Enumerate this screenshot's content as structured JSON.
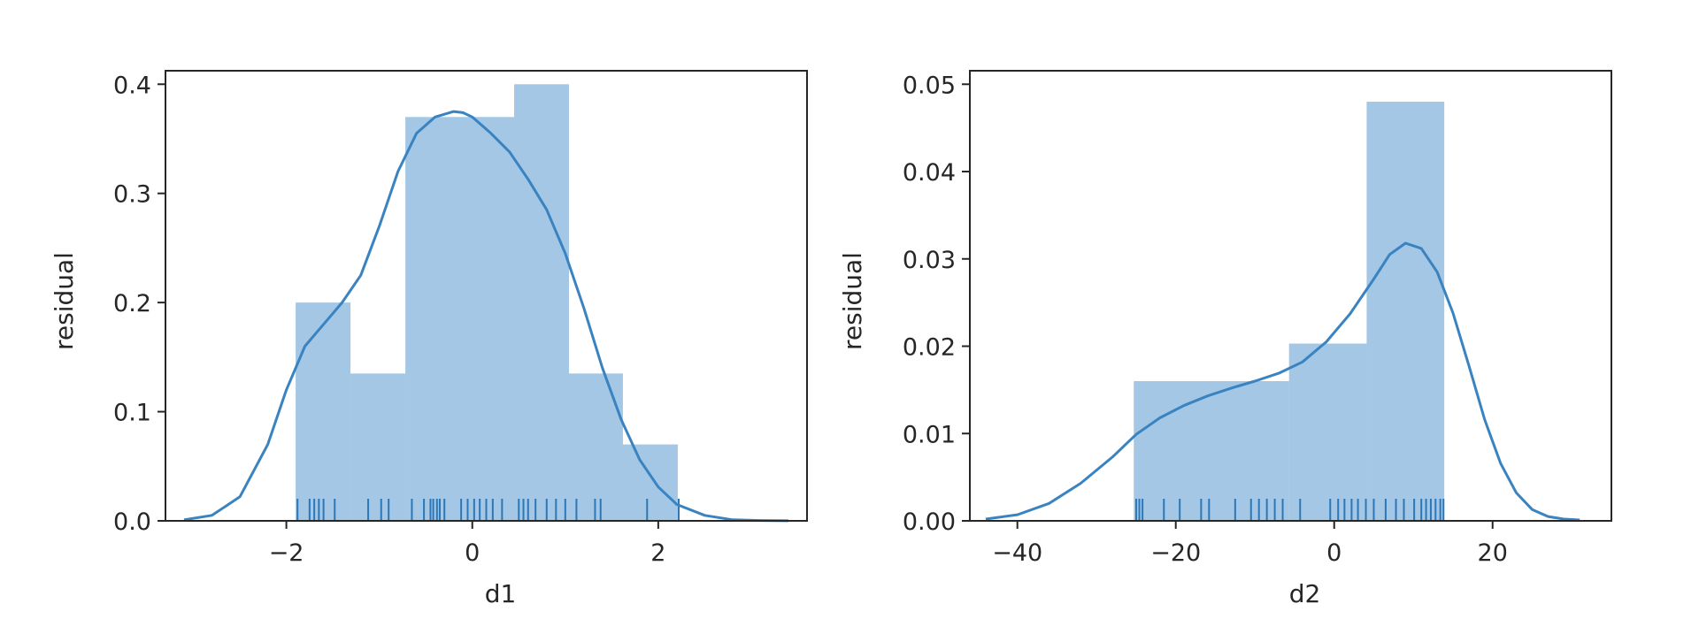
{
  "chart_data": [
    {
      "type": "histogram-kde-rug",
      "xlabel": "d1",
      "ylabel": "residual",
      "xlim": [
        -3.3,
        3.6
      ],
      "ylim": [
        0,
        0.4
      ],
      "xticks": [
        -2,
        0,
        2
      ],
      "yticks": [
        0.0,
        0.1,
        0.2,
        0.3,
        0.4
      ],
      "xtick_labels": [
        "−2",
        "0",
        "2"
      ],
      "ytick_labels": [
        "0.0",
        "0.1",
        "0.2",
        "0.3",
        "0.4"
      ],
      "grid": false,
      "bars": [
        {
          "x0": -1.9,
          "x1": -1.31,
          "density": 0.2
        },
        {
          "x0": -1.31,
          "x1": -0.72,
          "density": 0.135
        },
        {
          "x0": -0.72,
          "x1": 0.45,
          "density": 0.37
        },
        {
          "x0": 0.45,
          "x1": 1.04,
          "density": 0.4
        },
        {
          "x0": 1.04,
          "x1": 1.62,
          "density": 0.135
        },
        {
          "x0": 1.62,
          "x1": 2.21,
          "density": 0.07
        }
      ],
      "kde": {
        "x": [
          -3.1,
          -2.8,
          -2.5,
          -2.2,
          -2.0,
          -1.8,
          -1.6,
          -1.4,
          -1.2,
          -1.0,
          -0.8,
          -0.6,
          -0.4,
          -0.2,
          -0.1,
          0.0,
          0.2,
          0.4,
          0.6,
          0.8,
          1.0,
          1.2,
          1.4,
          1.6,
          1.8,
          2.0,
          2.2,
          2.5,
          2.8,
          3.1,
          3.4
        ],
        "y": [
          0.001,
          0.005,
          0.022,
          0.07,
          0.12,
          0.16,
          0.18,
          0.2,
          0.225,
          0.27,
          0.32,
          0.355,
          0.37,
          0.375,
          0.374,
          0.37,
          0.355,
          0.338,
          0.313,
          0.285,
          0.245,
          0.195,
          0.14,
          0.093,
          0.056,
          0.031,
          0.015,
          0.005,
          0.001,
          0.0003,
          0.0001
        ]
      },
      "rug": [
        -1.88,
        -1.75,
        -1.7,
        -1.65,
        -1.6,
        -1.48,
        -1.12,
        -0.98,
        -0.9,
        -0.65,
        -0.52,
        -0.45,
        -0.42,
        -0.38,
        -0.35,
        -0.3,
        -0.12,
        -0.05,
        0.02,
        0.08,
        0.15,
        0.22,
        0.32,
        0.5,
        0.55,
        0.6,
        0.68,
        0.8,
        0.9,
        1.0,
        1.12,
        1.32,
        1.38,
        1.88,
        2.22
      ]
    },
    {
      "type": "histogram-kde-rug",
      "xlabel": "d2",
      "ylabel": "residual",
      "xlim": [
        -46,
        35
      ],
      "ylim": [
        0,
        0.05
      ],
      "xticks": [
        -40,
        -20,
        0,
        20
      ],
      "yticks": [
        0.0,
        0.01,
        0.02,
        0.03,
        0.04,
        0.05
      ],
      "xtick_labels": [
        "−40",
        "−20",
        "0",
        "20"
      ],
      "ytick_labels": [
        "0.00",
        "0.01",
        "0.02",
        "0.03",
        "0.04",
        "0.05"
      ],
      "grid": false,
      "bars": [
        {
          "x0": -25.3,
          "x1": -5.7,
          "density": 0.016
        },
        {
          "x0": -5.7,
          "x1": 4.1,
          "density": 0.0203
        },
        {
          "x0": 4.1,
          "x1": 13.9,
          "density": 0.048
        }
      ],
      "kde": {
        "x": [
          -44,
          -40,
          -36,
          -32,
          -28,
          -25,
          -22,
          -19,
          -16,
          -13,
          -10,
          -7,
          -4,
          -1,
          2,
          5,
          7,
          9,
          11,
          13,
          15,
          17,
          19,
          21,
          23,
          25,
          27,
          29,
          31
        ],
        "y": [
          0.0002,
          0.0007,
          0.002,
          0.0043,
          0.0073,
          0.0099,
          0.0118,
          0.0132,
          0.0143,
          0.0152,
          0.016,
          0.0169,
          0.0182,
          0.0205,
          0.0237,
          0.0277,
          0.0305,
          0.0318,
          0.0312,
          0.0285,
          0.0238,
          0.0178,
          0.0116,
          0.0066,
          0.0032,
          0.0013,
          0.0005,
          0.0002,
          0.0001
        ]
      },
      "rug": [
        -25,
        -24.6,
        -24.2,
        -21.5,
        -19.5,
        -16.8,
        -15.8,
        -12.5,
        -10.5,
        -9.5,
        -8.5,
        -7.5,
        -6.5,
        -4.3,
        -0.5,
        0.5,
        1.3,
        2.2,
        3.0,
        4.0,
        5.0,
        6.5,
        7.8,
        8.8,
        10.1,
        11,
        11.6,
        12.2,
        12.8,
        13.4,
        13.8
      ]
    }
  ]
}
